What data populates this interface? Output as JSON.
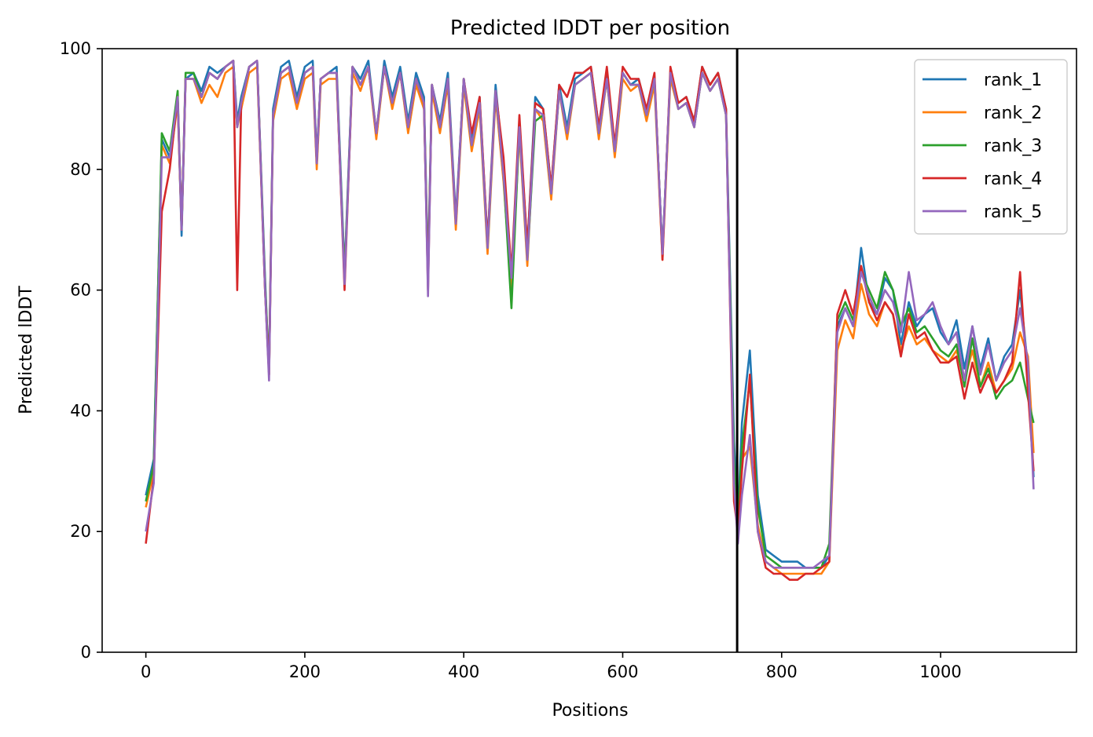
{
  "chart_data": {
    "type": "line",
    "title": "Predicted lDDT per position",
    "xlabel": "Positions",
    "ylabel": "Predicted lDDT",
    "xlim": [
      -55,
      1171
    ],
    "ylim": [
      0,
      100
    ],
    "xticks": [
      0,
      200,
      400,
      600,
      800,
      1000
    ],
    "yticks": [
      0,
      20,
      40,
      60,
      80,
      100
    ],
    "vline": 744,
    "legend_position": "top-right",
    "x": [
      0,
      10,
      20,
      30,
      40,
      45,
      50,
      60,
      70,
      80,
      90,
      100,
      110,
      115,
      120,
      130,
      140,
      150,
      155,
      160,
      170,
      180,
      190,
      200,
      210,
      215,
      220,
      230,
      240,
      250,
      260,
      270,
      280,
      290,
      300,
      310,
      320,
      330,
      340,
      350,
      355,
      360,
      370,
      380,
      390,
      400,
      410,
      420,
      430,
      440,
      450,
      460,
      470,
      480,
      490,
      500,
      510,
      520,
      530,
      540,
      550,
      560,
      570,
      580,
      590,
      600,
      610,
      620,
      630,
      640,
      650,
      660,
      670,
      680,
      690,
      700,
      710,
      720,
      730,
      740,
      745,
      750,
      760,
      770,
      780,
      790,
      800,
      810,
      820,
      830,
      840,
      850,
      860,
      870,
      880,
      890,
      900,
      910,
      920,
      930,
      940,
      950,
      960,
      970,
      980,
      990,
      1000,
      1010,
      1020,
      1030,
      1040,
      1050,
      1060,
      1070,
      1080,
      1090,
      1100,
      1110,
      1117
    ],
    "series": [
      {
        "name": "rank_1",
        "color": "#1f77b4",
        "values": [
          26,
          32,
          85,
          82,
          92,
          69,
          95,
          96,
          93,
          97,
          96,
          97,
          98,
          88,
          92,
          97,
          98,
          62,
          46,
          90,
          97,
          98,
          92,
          97,
          98,
          82,
          95,
          96,
          97,
          63,
          97,
          95,
          98,
          86,
          98,
          92,
          97,
          88,
          96,
          92,
          63,
          94,
          88,
          96,
          72,
          95,
          85,
          92,
          68,
          94,
          80,
          60,
          88,
          67,
          92,
          90,
          77,
          94,
          87,
          95,
          96,
          97,
          87,
          96,
          84,
          96,
          94,
          95,
          90,
          95,
          66,
          96,
          91,
          92,
          88,
          97,
          94,
          96,
          90,
          35,
          22,
          38,
          50,
          26,
          17,
          16,
          15,
          15,
          15,
          14,
          14,
          14,
          16,
          54,
          57,
          54,
          67,
          58,
          56,
          62,
          60,
          51,
          58,
          54,
          56,
          57,
          53,
          51,
          55,
          47,
          54,
          47,
          52,
          45,
          49,
          51,
          60,
          47,
          29
        ]
      },
      {
        "name": "rank_2",
        "color": "#ff7f0e",
        "values": [
          24,
          30,
          84,
          81,
          91,
          70,
          95,
          95,
          91,
          94,
          92,
          96,
          97,
          87,
          90,
          96,
          97,
          60,
          46,
          88,
          95,
          96,
          90,
          95,
          96,
          80,
          94,
          95,
          95,
          62,
          96,
          93,
          97,
          85,
          97,
          90,
          96,
          86,
          94,
          90,
          62,
          93,
          86,
          94,
          70,
          94,
          83,
          90,
          66,
          92,
          78,
          60,
          86,
          64,
          90,
          88,
          75,
          93,
          85,
          94,
          95,
          96,
          85,
          95,
          82,
          95,
          93,
          94,
          88,
          94,
          65,
          95,
          90,
          91,
          87,
          96,
          93,
          95,
          89,
          30,
          21,
          32,
          34,
          21,
          15,
          14,
          13,
          13,
          13,
          13,
          13,
          13,
          15,
          50,
          55,
          52,
          61,
          56,
          54,
          58,
          56,
          50,
          54,
          51,
          52,
          50,
          49,
          48,
          50,
          45,
          50,
          44,
          48,
          43,
          45,
          47,
          53,
          49,
          33
        ]
      },
      {
        "name": "rank_3",
        "color": "#2ca02c",
        "values": [
          25,
          31,
          86,
          83,
          93,
          70,
          96,
          96,
          92,
          96,
          95,
          97,
          98,
          87,
          91,
          97,
          98,
          61,
          47,
          89,
          96,
          97,
          91,
          96,
          97,
          81,
          95,
          96,
          96,
          62,
          97,
          94,
          97,
          86,
          97,
          91,
          96,
          87,
          95,
          91,
          62,
          94,
          87,
          95,
          71,
          95,
          84,
          91,
          67,
          93,
          79,
          57,
          87,
          65,
          88,
          89,
          76,
          93,
          86,
          94,
          95,
          96,
          86,
          95,
          83,
          96,
          94,
          94,
          89,
          95,
          66,
          96,
          90,
          91,
          87,
          96,
          93,
          95,
          89,
          32,
          22,
          34,
          45,
          24,
          16,
          15,
          14,
          14,
          14,
          14,
          14,
          14,
          18,
          55,
          58,
          55,
          63,
          60,
          57,
          63,
          60,
          54,
          57,
          53,
          54,
          52,
          50,
          49,
          51,
          44,
          52,
          44,
          47,
          42,
          44,
          45,
          48,
          42,
          38
        ]
      },
      {
        "name": "rank_4",
        "color": "#d62728",
        "values": [
          18,
          29,
          73,
          80,
          92,
          70,
          95,
          95,
          92,
          96,
          95,
          97,
          98,
          60,
          91,
          97,
          98,
          60,
          46,
          89,
          96,
          97,
          91,
          96,
          97,
          81,
          95,
          96,
          96,
          60,
          97,
          94,
          97,
          86,
          97,
          91,
          96,
          87,
          95,
          91,
          60,
          94,
          87,
          95,
          71,
          95,
          86,
          92,
          68,
          93,
          82,
          63,
          89,
          67,
          91,
          90,
          77,
          94,
          92,
          96,
          96,
          97,
          87,
          97,
          84,
          97,
          95,
          95,
          90,
          96,
          65,
          97,
          91,
          92,
          88,
          97,
          94,
          96,
          90,
          25,
          20,
          30,
          46,
          20,
          14,
          13,
          13,
          12,
          12,
          13,
          13,
          14,
          15,
          56,
          60,
          56,
          64,
          58,
          55,
          58,
          56,
          49,
          56,
          52,
          53,
          50,
          48,
          48,
          49,
          42,
          48,
          43,
          46,
          43,
          45,
          48,
          63,
          43,
          30
        ]
      },
      {
        "name": "rank_5",
        "color": "#9467bd",
        "values": [
          20,
          28,
          82,
          82,
          92,
          70,
          95,
          95,
          92,
          96,
          95,
          97,
          98,
          87,
          91,
          97,
          98,
          60,
          45,
          89,
          96,
          97,
          91,
          96,
          97,
          81,
          95,
          96,
          96,
          61,
          97,
          94,
          97,
          86,
          97,
          91,
          96,
          87,
          95,
          91,
          59,
          94,
          87,
          95,
          71,
          95,
          84,
          91,
          67,
          93,
          79,
          62,
          87,
          65,
          90,
          89,
          76,
          93,
          86,
          94,
          95,
          96,
          86,
          95,
          83,
          96,
          94,
          94,
          89,
          95,
          66,
          96,
          90,
          91,
          87,
          96,
          93,
          95,
          89,
          28,
          18,
          26,
          36,
          20,
          15,
          14,
          14,
          14,
          14,
          14,
          14,
          15,
          16,
          53,
          57,
          54,
          63,
          59,
          56,
          60,
          58,
          53,
          63,
          55,
          56,
          58,
          54,
          51,
          53,
          45,
          54,
          46,
          51,
          45,
          48,
          50,
          57,
          48,
          27
        ]
      }
    ]
  }
}
